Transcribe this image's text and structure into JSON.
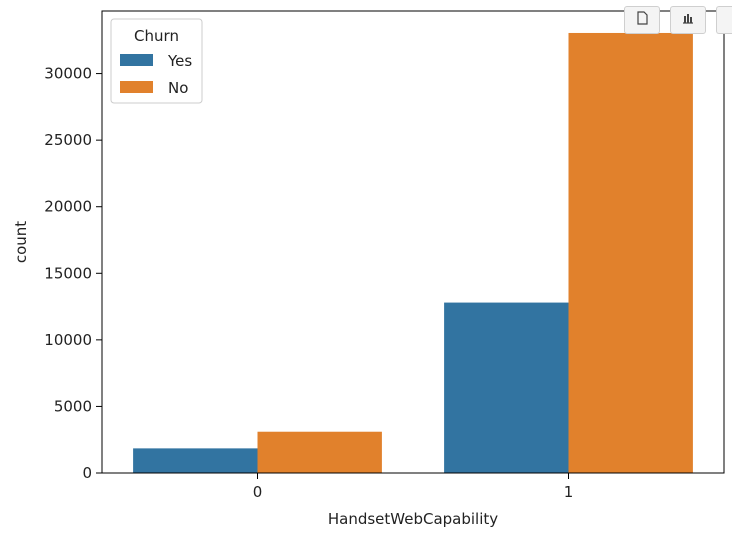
{
  "toolbar": {
    "buttons": [
      {
        "icon": "copy-icon"
      },
      {
        "icon": "bar-chart-icon"
      },
      {
        "icon": "more-icon"
      }
    ]
  },
  "chart_data": {
    "type": "bar",
    "title": "",
    "xlabel": "HandsetWebCapability",
    "ylabel": "count",
    "categories": [
      "0",
      "1"
    ],
    "series": [
      {
        "name": "Yes",
        "values": [
          1850,
          12800
        ],
        "color": "#3274a1"
      },
      {
        "name": "No",
        "values": [
          3100,
          33050
        ],
        "color": "#e1812c"
      }
    ],
    "ylim": [
      0,
      34700
    ],
    "yticks": [
      0,
      5000,
      10000,
      15000,
      20000,
      25000,
      30000
    ],
    "legend": {
      "title": "Churn",
      "placement": "top-left"
    },
    "grid": false
  }
}
